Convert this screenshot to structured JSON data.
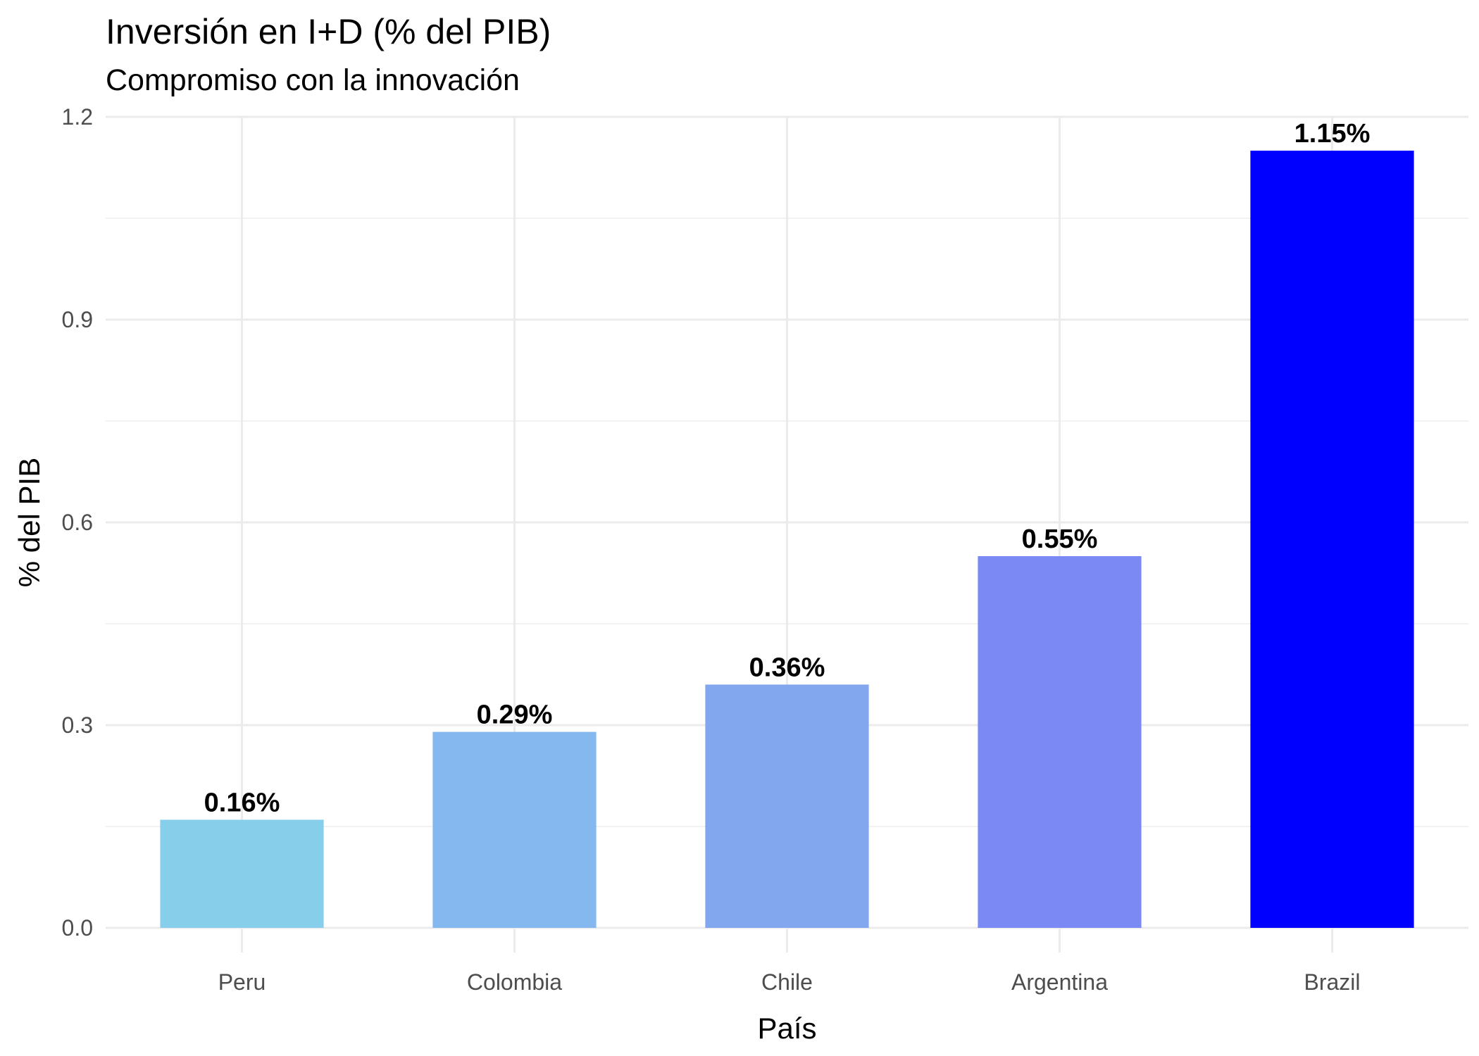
{
  "chart_data": {
    "type": "bar",
    "title": "Inversión en I+D (% del PIB)",
    "subtitle": "Compromiso con la innovación",
    "xlabel": "País",
    "ylabel": "% del PIB",
    "categories": [
      "Peru",
      "Colombia",
      "Chile",
      "Argentina",
      "Brazil"
    ],
    "values": [
      0.16,
      0.29,
      0.36,
      0.55,
      1.15
    ],
    "value_labels": [
      "0.16%",
      "0.29%",
      "0.36%",
      "0.55%",
      "1.15%"
    ],
    "bar_colors": [
      "#87CEEB",
      "#85B8EE",
      "#82A7EF",
      "#7A89F3",
      "#0000FF"
    ],
    "ylim": [
      0,
      1.2
    ],
    "yticks": [
      0.0,
      0.3,
      0.6,
      0.9,
      1.2
    ],
    "ytick_labels": [
      "0.0",
      "0.3",
      "0.6",
      "0.9",
      "1.2"
    ],
    "grid": true,
    "legend": "none",
    "colors": {
      "background": "#FFFFFF",
      "grid_major": "#EBEBEB",
      "grid_minor": "#F2F2F2",
      "tick_text": "#4D4D4D"
    }
  }
}
